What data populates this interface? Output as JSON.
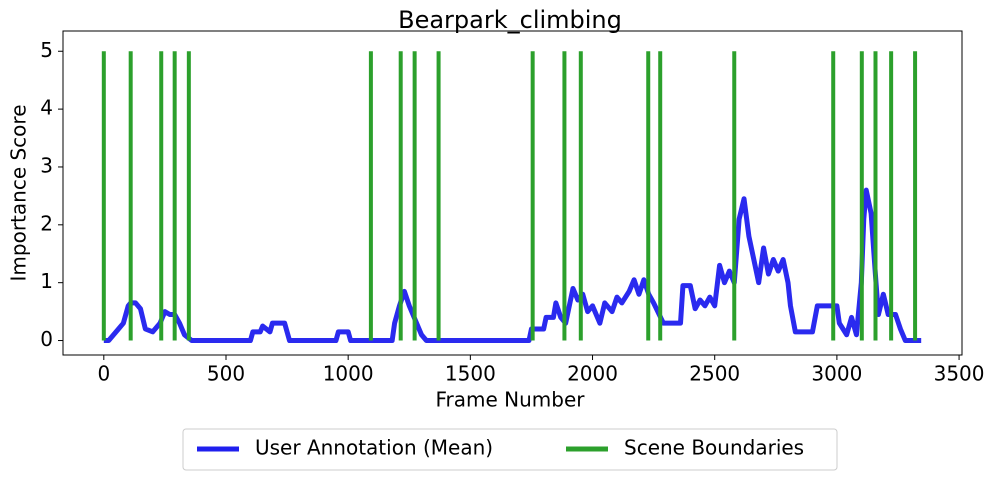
{
  "chart_data": {
    "type": "line",
    "title": "Bearpark_climbing",
    "x_label": "Frame Number",
    "y_label": "Importance Score",
    "xlim": [
      -167,
      3512
    ],
    "ylim": [
      -0.25,
      5.35
    ],
    "xticks": [
      0,
      500,
      1000,
      1500,
      2000,
      2500,
      3000,
      3500
    ],
    "yticks": [
      0,
      1,
      2,
      3,
      4,
      5
    ],
    "legend": "below",
    "series": [
      {
        "name": "User Annotation (Mean)",
        "color": "#1f1fee",
        "x": [
          0,
          20,
          40,
          60,
          80,
          100,
          110,
          130,
          150,
          170,
          200,
          230,
          250,
          270,
          290,
          310,
          330,
          360,
          600,
          610,
          640,
          650,
          680,
          690,
          740,
          760,
          950,
          960,
          1000,
          1010,
          1180,
          1190,
          1210,
          1230,
          1250,
          1280,
          1300,
          1320,
          1740,
          1750,
          1800,
          1810,
          1840,
          1850,
          1870,
          1890,
          1900,
          1920,
          1940,
          1960,
          1980,
          2000,
          2010,
          2030,
          2050,
          2080,
          2100,
          2120,
          2150,
          2170,
          2190,
          2210,
          2230,
          2250,
          2290,
          2320,
          2360,
          2370,
          2400,
          2420,
          2440,
          2460,
          2480,
          2500,
          2520,
          2540,
          2560,
          2580,
          2600,
          2620,
          2640,
          2660,
          2680,
          2700,
          2720,
          2740,
          2760,
          2780,
          2800,
          2810,
          2830,
          2900,
          2920,
          2960,
          3000,
          3010,
          3040,
          3060,
          3080,
          3100,
          3110,
          3120,
          3140,
          3160,
          3170,
          3190,
          3210,
          3240,
          3260,
          3280,
          3345
        ],
        "values": [
          0,
          0,
          0.1,
          0.2,
          0.3,
          0.6,
          0.65,
          0.65,
          0.55,
          0.2,
          0.15,
          0.3,
          0.5,
          0.45,
          0.45,
          0.3,
          0.1,
          0,
          0,
          0.15,
          0.15,
          0.25,
          0.15,
          0.3,
          0.3,
          0,
          0,
          0.15,
          0.15,
          0,
          0,
          0.3,
          0.6,
          0.85,
          0.6,
          0.3,
          0.1,
          0,
          0,
          0.2,
          0.2,
          0.4,
          0.4,
          0.65,
          0.4,
          0.3,
          0.5,
          0.9,
          0.7,
          0.8,
          0.5,
          0.6,
          0.5,
          0.3,
          0.65,
          0.5,
          0.75,
          0.65,
          0.85,
          1.05,
          0.8,
          1.05,
          0.8,
          0.65,
          0.3,
          0.3,
          0.3,
          0.95,
          0.95,
          0.55,
          0.7,
          0.6,
          0.75,
          0.6,
          1.3,
          1.0,
          1.2,
          1.0,
          2.1,
          2.45,
          1.8,
          1.4,
          1.0,
          1.6,
          1.15,
          1.4,
          1.2,
          1.4,
          1.0,
          0.6,
          0.15,
          0.15,
          0.6,
          0.6,
          0.6,
          0.3,
          0.1,
          0.4,
          0.1,
          1.0,
          2.1,
          2.6,
          2.2,
          1.0,
          0.45,
          0.8,
          0.45,
          0.45,
          0.2,
          0,
          0
        ]
      },
      {
        "name": "Scene Boundaries",
        "color": "#2ca02c",
        "kind": "vlines",
        "x": [
          0,
          110,
          235,
          290,
          348,
          1093,
          1215,
          1272,
          1370,
          1755,
          1885,
          1952,
          2228,
          2277,
          2580,
          2985,
          3102,
          3158,
          3222,
          3320
        ],
        "values": [
          5,
          5,
          5,
          5,
          5,
          5,
          5,
          5,
          5,
          5,
          5,
          5,
          5,
          5,
          5,
          5,
          5,
          5,
          5,
          5
        ]
      }
    ]
  }
}
